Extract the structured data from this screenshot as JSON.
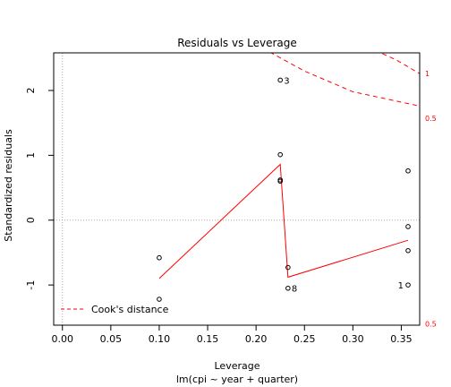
{
  "chart_data": {
    "type": "scatter",
    "title": "Residuals vs Leverage",
    "xlabel": "Leverage",
    "subtitle": "lm(cpi ~ year + quarter)",
    "ylabel": "Standardized residuals",
    "xlim": [
      -0.009,
      0.369
    ],
    "ylim": [
      -1.62,
      2.58
    ],
    "x_ticks": [
      0.0,
      0.05,
      0.1,
      0.15,
      0.2,
      0.25,
      0.3,
      0.35
    ],
    "x_tick_labels": [
      "0.00",
      "0.05",
      "0.10",
      "0.15",
      "0.20",
      "0.25",
      "0.30",
      "0.35"
    ],
    "y_ticks": [
      -1,
      0,
      1,
      2
    ],
    "y_tick_labels": [
      "-1",
      "0",
      "1",
      "2"
    ],
    "points": [
      {
        "x": 0.1,
        "y": -0.58
      },
      {
        "x": 0.1,
        "y": -1.22
      },
      {
        "x": 0.225,
        "y": 2.16,
        "label": "3"
      },
      {
        "x": 0.225,
        "y": 1.01
      },
      {
        "x": 0.225,
        "y": 0.62
      },
      {
        "x": 0.225,
        "y": 0.6
      },
      {
        "x": 0.233,
        "y": -0.73
      },
      {
        "x": 0.233,
        "y": -1.05,
        "label": "8"
      },
      {
        "x": 0.357,
        "y": 0.76
      },
      {
        "x": 0.357,
        "y": -0.1
      },
      {
        "x": 0.357,
        "y": -0.47
      },
      {
        "x": 0.357,
        "y": -1.0,
        "label": "1"
      }
    ],
    "smooth_line": {
      "color": "#ff0000",
      "points": [
        [
          0.1,
          -0.9
        ],
        [
          0.225,
          0.86
        ],
        [
          0.233,
          -0.88
        ],
        [
          0.357,
          -0.31
        ]
      ]
    },
    "reference_lines": {
      "h": 0,
      "v": 0,
      "color": "#aaaaaa"
    },
    "cooks_contours": [
      {
        "level_label": "1",
        "upper": [
          [
            0.207,
            2.65
          ],
          [
            0.25,
            2.3
          ],
          [
            0.3,
            1.98
          ],
          [
            0.35,
            1.82
          ],
          [
            0.369,
            1.76
          ]
        ]
      },
      {
        "level_label": "0.5",
        "upper": [
          [
            0.323,
            2.62
          ],
          [
            0.345,
            2.47
          ],
          [
            0.369,
            2.26
          ]
        ]
      }
    ],
    "margin_labels": [
      {
        "text": "1",
        "y": 2.26
      },
      {
        "text": "0.5",
        "y": 1.57
      },
      {
        "text": "0.5",
        "y": -1.6
      }
    ],
    "legend": {
      "label": "Cook's distance",
      "position": "bottom-left",
      "line_color": "#ff0000",
      "line_style": "dashed"
    },
    "grid": false
  }
}
